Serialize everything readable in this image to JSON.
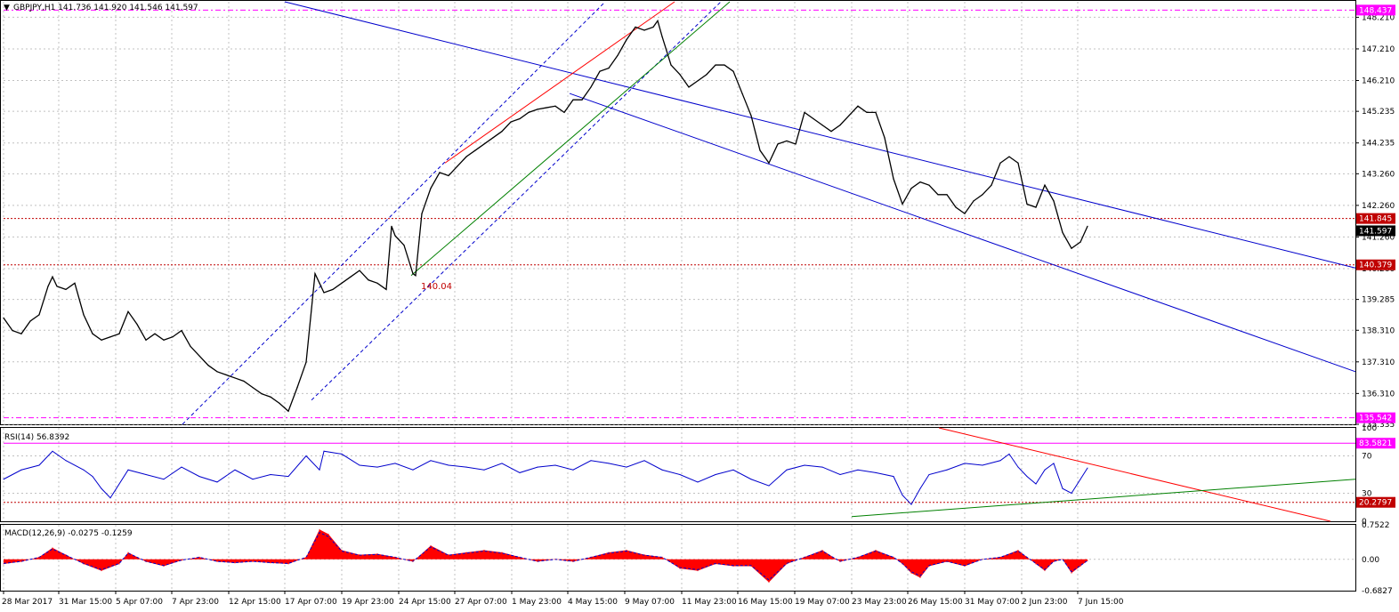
{
  "header": {
    "symbol_line": "GBPJPY,H1  141.736 141.920 141.546 141.597"
  },
  "colors": {
    "price": "#000000",
    "channel": "#0000cc",
    "red_line": "#ff0000",
    "green_line": "#008000",
    "magenta": "#ff00ff",
    "dotted_red": "#c00000",
    "rsi": "#0000cc",
    "macd_hist": "#ff0000",
    "macd_signal": "#0000cc",
    "grid": "#c0c0c0"
  },
  "chart_data": [
    {
      "type": "line",
      "name": "GBPJPY H1",
      "ylim": [
        135.335,
        148.7
      ],
      "yticks": [
        "148.210",
        "147.210",
        "146.210",
        "145.235",
        "144.235",
        "143.260",
        "142.260",
        "141.260",
        "140.260",
        "139.285",
        "138.310",
        "137.310",
        "136.310",
        "135.335"
      ],
      "xticks": [
        "28 Mar 2017",
        "31 Mar 15:00",
        "5 Apr 07:00",
        "7 Apr 23:00",
        "12 Apr 15:00",
        "17 Apr 07:00",
        "19 Apr 23:00",
        "24 Apr 15:00",
        "27 Apr 07:00",
        "1 May 23:00",
        "4 May 15:00",
        "9 May 07:00",
        "11 May 23:00",
        "16 May 15:00",
        "19 May 07:00",
        "23 May 23:00",
        "26 May 15:00",
        "31 May 07:00",
        "2 Jun 23:00",
        "7 Jun 15:00"
      ],
      "price_labels": {
        "high_line": "148.437",
        "current_bid_ref": "141.845",
        "current": "141.597",
        "support": "140.379",
        "low_line": "135.542"
      },
      "annotation": "140.04",
      "x": [
        0,
        10,
        20,
        30,
        40,
        50,
        55,
        60,
        70,
        80,
        90,
        100,
        110,
        120,
        130,
        140,
        150,
        160,
        170,
        180,
        190,
        200,
        210,
        220,
        230,
        240,
        250,
        260,
        270,
        280,
        290,
        300,
        310,
        320,
        330,
        340,
        350,
        355,
        360,
        370,
        380,
        390,
        400,
        410,
        420,
        430,
        436,
        440,
        450,
        460,
        463,
        470,
        480,
        490,
        500,
        510,
        520,
        530,
        540,
        550,
        560,
        570,
        580,
        590,
        600,
        610,
        620,
        630,
        640,
        650,
        660,
        670,
        680,
        690,
        700,
        710,
        720,
        730,
        735,
        740,
        750,
        760,
        770,
        780,
        790,
        800,
        810,
        820,
        830,
        840,
        850,
        860,
        870,
        880,
        890,
        900,
        910,
        920,
        930,
        940,
        950,
        960,
        970,
        980,
        990,
        1000,
        1010,
        1020,
        1030,
        1040,
        1050,
        1060,
        1070,
        1080,
        1090,
        1100,
        1110,
        1120,
        1130,
        1140,
        1150,
        1160,
        1170,
        1180,
        1190,
        1200,
        1210,
        1218
      ],
      "y": [
        138.7,
        138.3,
        138.2,
        138.6,
        138.8,
        139.7,
        140.0,
        139.7,
        139.6,
        139.8,
        138.8,
        138.2,
        138.0,
        138.1,
        138.2,
        138.9,
        138.5,
        138.0,
        138.2,
        138.0,
        138.1,
        138.3,
        137.8,
        137.5,
        137.2,
        137.0,
        136.9,
        136.8,
        136.7,
        136.5,
        136.3,
        136.2,
        136.0,
        135.75,
        136.5,
        137.3,
        140.1,
        139.8,
        139.5,
        139.6,
        139.8,
        140.0,
        140.2,
        139.9,
        139.8,
        139.6,
        141.6,
        141.3,
        141.0,
        140.1,
        140.04,
        142.0,
        142.8,
        143.3,
        143.2,
        143.5,
        143.8,
        144.0,
        144.2,
        144.4,
        144.6,
        144.9,
        145.0,
        145.2,
        145.3,
        145.35,
        145.4,
        145.2,
        145.6,
        145.6,
        146.0,
        146.5,
        146.6,
        147.0,
        147.5,
        147.9,
        147.8,
        147.9,
        148.1,
        147.6,
        146.7,
        146.4,
        146.0,
        146.2,
        146.4,
        146.7,
        146.7,
        146.5,
        145.8,
        145.1,
        144.0,
        143.6,
        144.2,
        144.3,
        144.2,
        145.2,
        145.0,
        144.8,
        144.6,
        144.8,
        145.1,
        145.4,
        145.2,
        145.2,
        144.4,
        143.1,
        142.3,
        142.8,
        143.0,
        142.9,
        142.6,
        142.6,
        142.2,
        142.0,
        142.4,
        142.6,
        142.9,
        143.6,
        143.8,
        143.6,
        142.3,
        142.2,
        142.9,
        142.4,
        141.4,
        140.9,
        141.1,
        141.6
      ]
    },
    {
      "type": "line",
      "name": "RSI(14)",
      "title": "RSI(14) 56.8392",
      "ylim": [
        0,
        100
      ],
      "yticks": [
        "100",
        "70",
        "30",
        "0"
      ],
      "levels": [
        "83.5821",
        "20.2797"
      ],
      "x": [
        0,
        20,
        40,
        55,
        70,
        90,
        100,
        110,
        120,
        140,
        160,
        180,
        200,
        220,
        240,
        260,
        280,
        300,
        320,
        340,
        355,
        360,
        380,
        400,
        420,
        440,
        460,
        480,
        500,
        520,
        540,
        560,
        580,
        600,
        620,
        640,
        660,
        680,
        700,
        720,
        740,
        760,
        780,
        800,
        820,
        840,
        860,
        880,
        900,
        920,
        940,
        960,
        980,
        1000,
        1010,
        1020,
        1030,
        1040,
        1060,
        1080,
        1100,
        1120,
        1130,
        1140,
        1150,
        1160,
        1170,
        1180,
        1190,
        1200,
        1210,
        1218
      ],
      "y": [
        45,
        55,
        60,
        75,
        65,
        55,
        48,
        35,
        25,
        55,
        50,
        45,
        58,
        48,
        42,
        55,
        45,
        50,
        48,
        70,
        55,
        75,
        72,
        60,
        58,
        62,
        55,
        65,
        60,
        58,
        55,
        62,
        52,
        58,
        60,
        55,
        65,
        62,
        58,
        65,
        55,
        50,
        42,
        50,
        55,
        45,
        38,
        55,
        60,
        58,
        50,
        55,
        52,
        48,
        28,
        18,
        35,
        50,
        55,
        62,
        60,
        65,
        72,
        58,
        48,
        40,
        55,
        62,
        35,
        30,
        45,
        57
      ]
    },
    {
      "type": "area",
      "name": "MACD(12,26,9)",
      "title": "MACD(12,26,9) -0.0275 -0.1259",
      "ylim": [
        -0.6827,
        0.7522
      ],
      "yticks": [
        "0.7522",
        "0.00",
        "-0.6827"
      ],
      "x": [
        0,
        20,
        40,
        55,
        70,
        90,
        110,
        130,
        140,
        160,
        180,
        200,
        220,
        240,
        260,
        280,
        300,
        320,
        340,
        355,
        365,
        380,
        400,
        420,
        440,
        460,
        480,
        500,
        520,
        540,
        560,
        580,
        600,
        620,
        640,
        660,
        680,
        700,
        720,
        740,
        760,
        780,
        800,
        820,
        840,
        860,
        880,
        900,
        920,
        940,
        960,
        980,
        1000,
        1010,
        1020,
        1030,
        1040,
        1060,
        1080,
        1100,
        1120,
        1140,
        1160,
        1170,
        1180,
        1190,
        1200,
        1210,
        1218
      ],
      "y": [
        -0.1,
        -0.05,
        0.05,
        0.25,
        0.1,
        -0.1,
        -0.25,
        -0.1,
        0.15,
        -0.05,
        -0.15,
        -0.02,
        0.05,
        -0.05,
        -0.08,
        -0.05,
        -0.08,
        -0.1,
        0.05,
        0.65,
        0.55,
        0.2,
        0.1,
        0.12,
        0.05,
        -0.05,
        0.3,
        0.1,
        0.15,
        0.2,
        0.15,
        0.05,
        -0.05,
        0.0,
        -0.05,
        0.05,
        0.15,
        0.2,
        0.1,
        0.05,
        -0.2,
        -0.25,
        -0.1,
        -0.15,
        -0.15,
        -0.5,
        -0.1,
        0.05,
        0.2,
        -0.05,
        0.05,
        0.2,
        0.05,
        -0.1,
        -0.3,
        -0.4,
        -0.15,
        -0.05,
        -0.15,
        0.0,
        0.05,
        0.2,
        -0.1,
        -0.25,
        -0.05,
        0.0,
        -0.3,
        -0.15,
        -0.03
      ]
    }
  ]
}
